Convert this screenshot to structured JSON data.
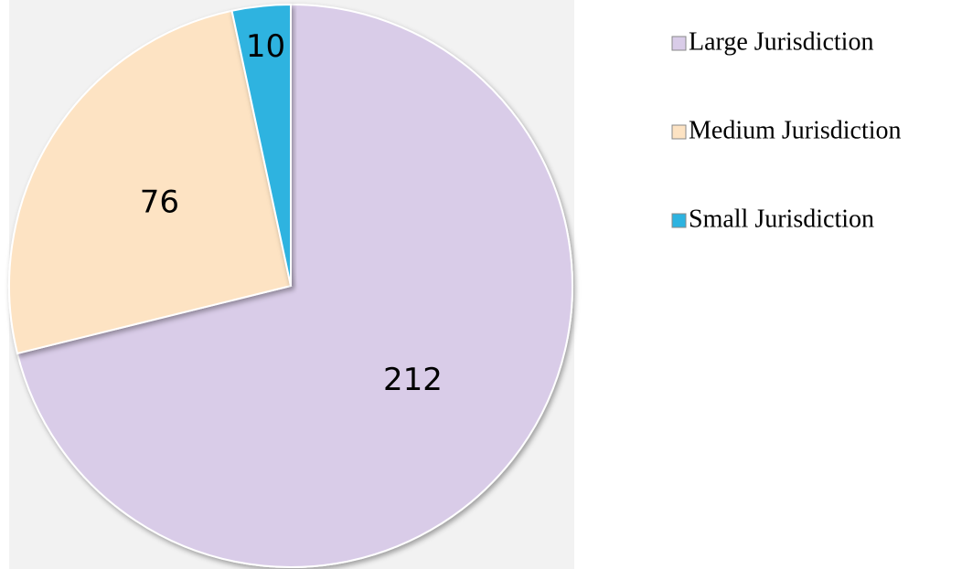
{
  "chart_data": {
    "type": "pie",
    "categories": [
      "Large Jurisdiction",
      "Medium Jurisdiction",
      "Small Jurisdiction"
    ],
    "values": [
      212,
      76,
      10
    ],
    "colors": [
      "#d9cce8",
      "#fde3c3",
      "#2db3e0"
    ],
    "legend": "right"
  }
}
